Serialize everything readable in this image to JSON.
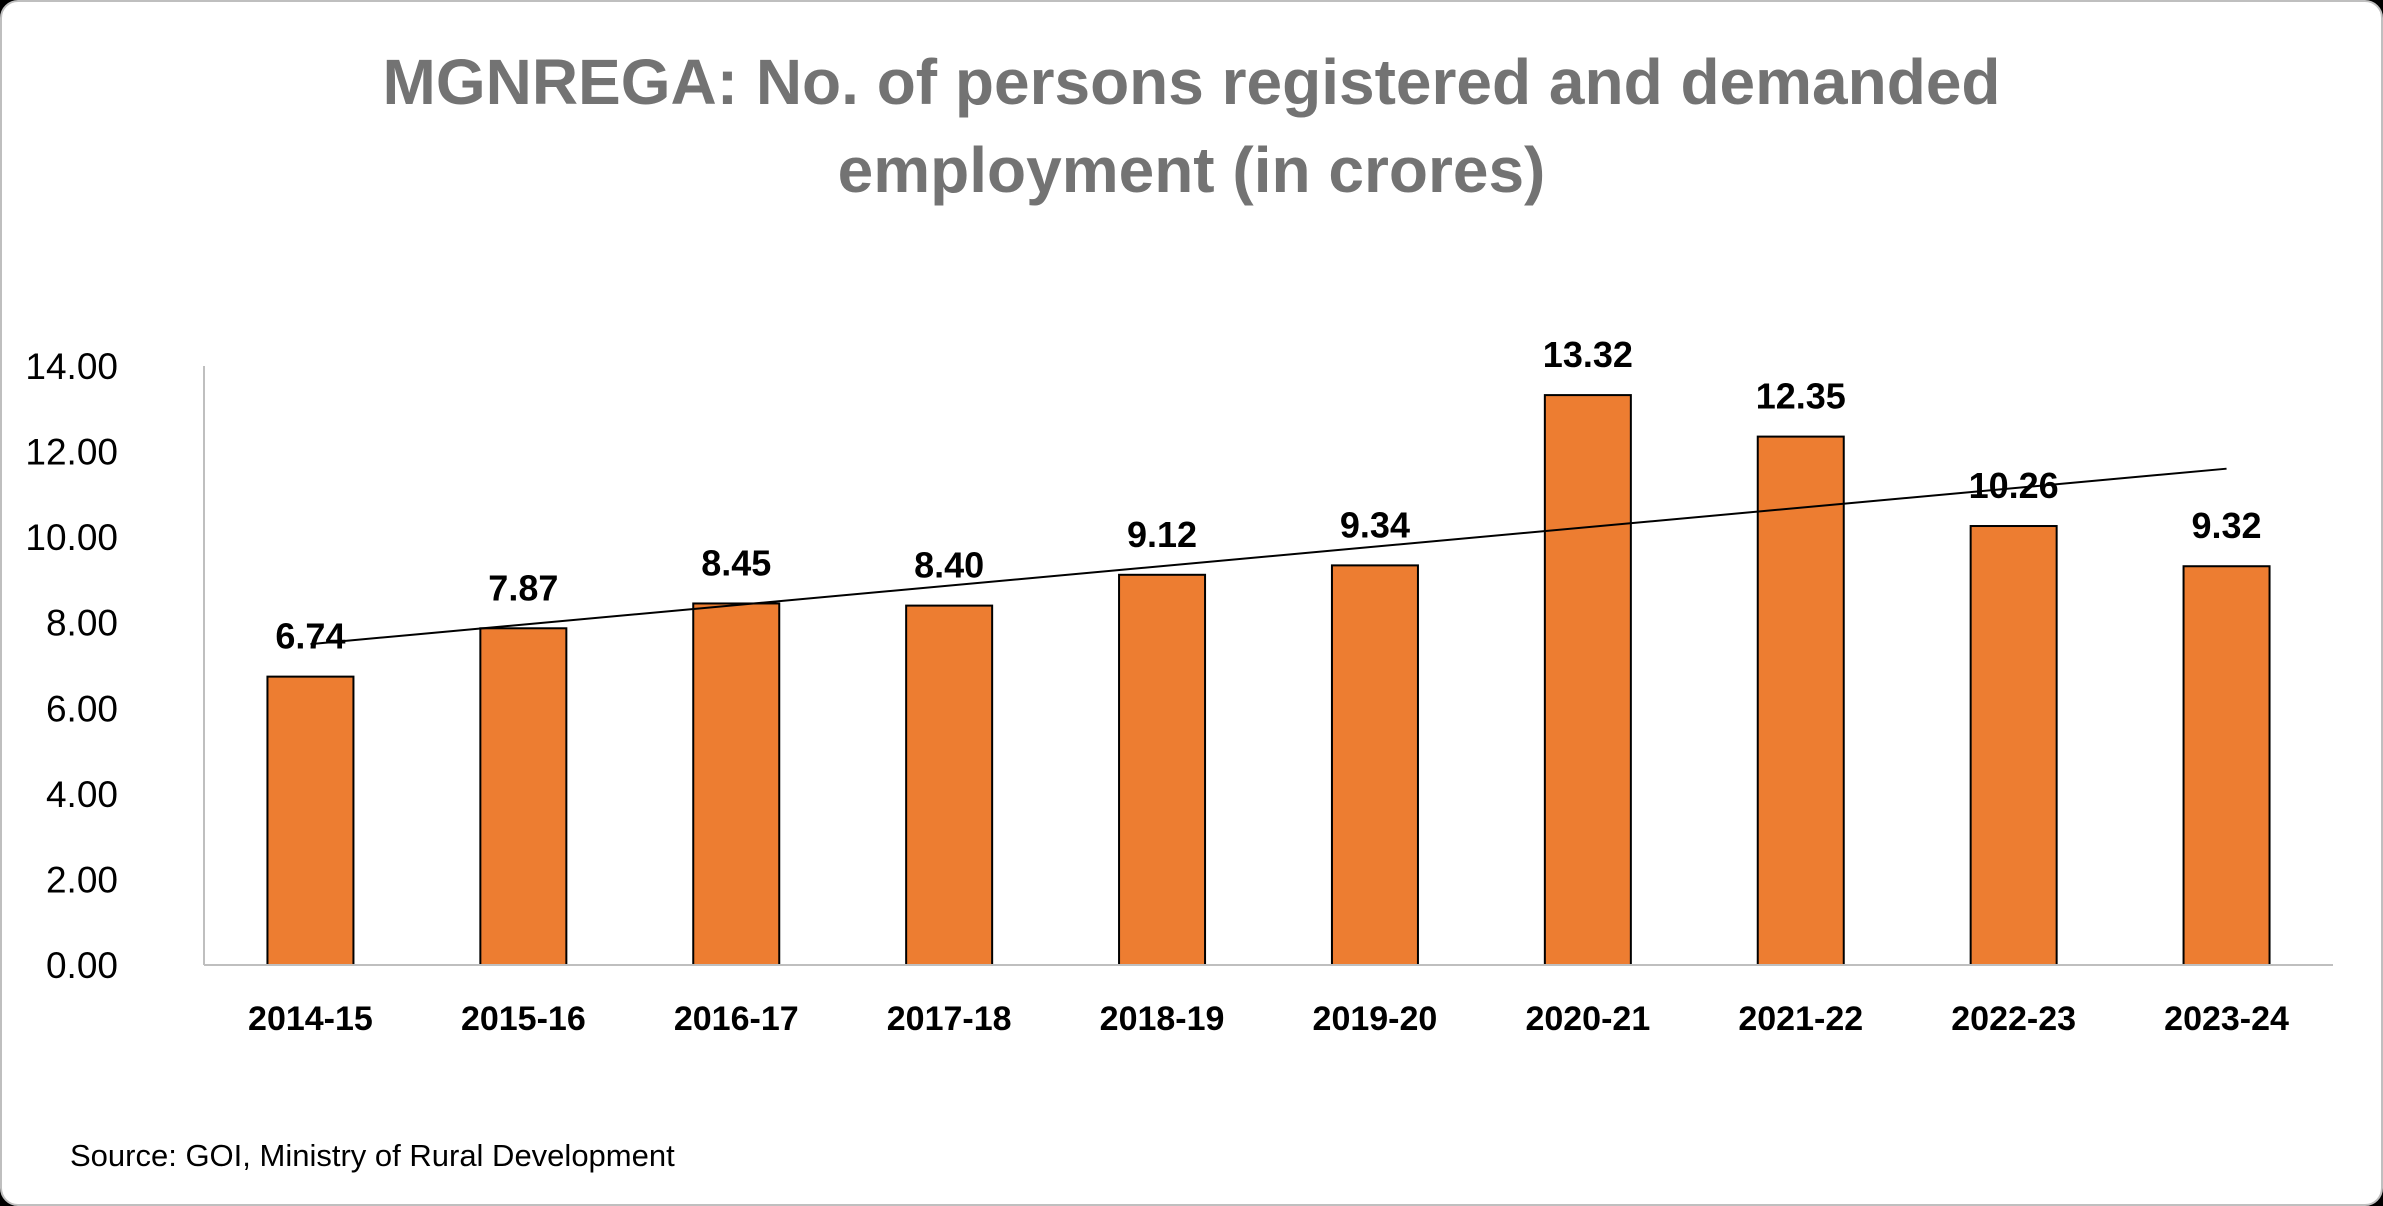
{
  "title_line1": "MGNREGA: No. of persons registered and demanded",
  "title_line2": "employment (in crores)",
  "source": "Source: GOI, Ministry of Rural Development",
  "chart_data": {
    "type": "bar",
    "title": "MGNREGA: No. of persons registered and demanded employment (in crores)",
    "categories": [
      "2014-15",
      "2015-16",
      "2016-17",
      "2017-18",
      "2018-19",
      "2019-20",
      "2020-21",
      "2021-22",
      "2022-23",
      "2023-24"
    ],
    "values": [
      6.74,
      7.87,
      8.45,
      8.4,
      9.12,
      9.34,
      13.32,
      12.35,
      10.26,
      9.32
    ],
    "data_labels": [
      "6.74",
      "7.87",
      "8.45",
      "8.40",
      "9.12",
      "9.34",
      "13.32",
      "12.35",
      "10.26",
      "9.32"
    ],
    "y_ticks": [
      "0.00",
      "2.00",
      "4.00",
      "6.00",
      "8.00",
      "10.00",
      "12.00",
      "14.00"
    ],
    "ylim": [
      0,
      14
    ],
    "xlabel": "",
    "ylabel": "",
    "bar_color": "#ED7D31",
    "trendline": {
      "type": "linear",
      "start": 7.5,
      "end": 11.6
    },
    "legend": "none",
    "grid": false
  }
}
